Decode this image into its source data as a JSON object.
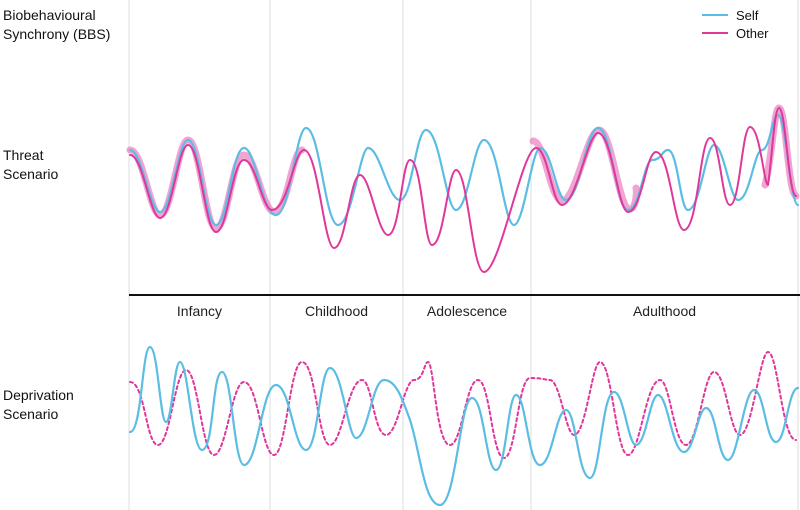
{
  "labels": {
    "bbs": "Biobehavioural Synchrony (BBS)",
    "threat": "Threat Scenario",
    "deprivation": "Deprivation Scenario"
  },
  "periods": [
    "Infancy",
    "Childhood",
    "Adolescence",
    "Adulthood"
  ],
  "legend": [
    {
      "label": "Self",
      "color": "#5bbde3"
    },
    {
      "label": "Other",
      "color": "#e0379b"
    }
  ],
  "colors": {
    "self": "#5bbde3",
    "other": "#e0379b",
    "synchrony_highlight": "#ec86c2",
    "divider": "#111111",
    "gridline": "#dddddd"
  }
}
